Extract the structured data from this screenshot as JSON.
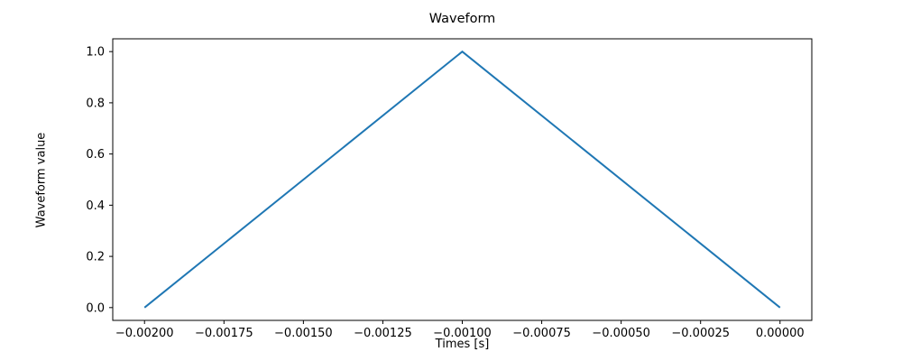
{
  "chart_data": {
    "type": "line",
    "title": "Waveform",
    "xlabel": "Times [s]",
    "ylabel": "Waveform value",
    "x": [
      -0.002,
      -0.001,
      0.0
    ],
    "y": [
      0.0,
      1.0,
      0.0
    ],
    "xlim": [
      -0.0021,
      0.0001
    ],
    "ylim": [
      -0.05,
      1.05
    ],
    "xticks": {
      "values": [
        -0.002,
        -0.00175,
        -0.0015,
        -0.00125,
        -0.001,
        -0.00075,
        -0.0005,
        -0.00025,
        0.0
      ],
      "labels": [
        "−0.00200",
        "−0.00175",
        "−0.00150",
        "−0.00125",
        "−0.00100",
        "−0.00075",
        "−0.00050",
        "−0.00025",
        "0.00000"
      ]
    },
    "yticks": {
      "values": [
        0.0,
        0.2,
        0.4,
        0.6,
        0.8,
        1.0
      ],
      "labels": [
        "0.0",
        "0.2",
        "0.4",
        "0.6",
        "0.8",
        "1.0"
      ]
    },
    "grid": false,
    "legend": null,
    "line_color": "#1f77b4",
    "spine_color": "#000000",
    "background_color": "#ffffff"
  }
}
